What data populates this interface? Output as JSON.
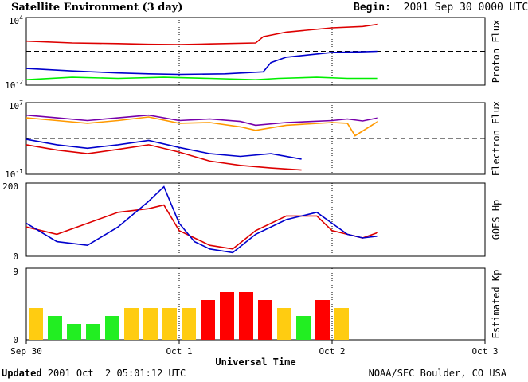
{
  "header": {
    "title": "Satellite Environment (3 day)",
    "begin_label": "Begin:",
    "begin_value": "2001 Sep 30 0000 UTC"
  },
  "footer": {
    "updated_label": "Updated",
    "updated_value": "2001 Oct  2 05:01:12 UTC",
    "agency": "NOAA/SEC Boulder, CO USA"
  },
  "x_axis": {
    "label": "Universal Time",
    "ticks": [
      "Sep 30",
      "Oct 1",
      "Oct 2",
      "Oct 3"
    ],
    "range_days": [
      0,
      3
    ]
  },
  "chart_data": [
    {
      "type": "line",
      "panel": "proton",
      "ylabel": "Proton Flux",
      "yscale": "log",
      "ylim": [
        0.01,
        10000
      ],
      "y_tick_labels": {
        "top": "10^4",
        "bottom": "10^-2",
        "top_base": "10",
        "top_exp": "4",
        "bottom_base": "10",
        "bottom_exp": "-2"
      },
      "threshold": 10,
      "series": [
        {
          "color": "#dd0000",
          "x": [
            0,
            0.3,
            0.6,
            0.8,
            1.0,
            1.2,
            1.5,
            1.55,
            1.7,
            2.0,
            2.2,
            2.3
          ],
          "values": [
            80,
            55,
            48,
            42,
            40,
            45,
            55,
            200,
            500,
            1200,
            1600,
            2500
          ]
        },
        {
          "color": "#0000cc",
          "x": [
            0,
            0.3,
            0.6,
            0.8,
            1.0,
            1.3,
            1.55,
            1.6,
            1.7,
            2.0,
            2.2,
            2.3
          ],
          "values": [
            0.3,
            0.18,
            0.12,
            0.1,
            0.09,
            0.1,
            0.15,
            1.0,
            3,
            8,
            9,
            10
          ]
        },
        {
          "color": "#00ee00",
          "x": [
            0,
            0.3,
            0.6,
            0.9,
            1.2,
            1.5,
            1.65,
            1.9,
            2.1,
            2.3
          ],
          "values": [
            0.03,
            0.05,
            0.04,
            0.05,
            0.04,
            0.03,
            0.04,
            0.05,
            0.04,
            0.04
          ]
        }
      ]
    },
    {
      "type": "line",
      "panel": "electron",
      "ylabel": "Electron Flux",
      "yscale": "log",
      "ylim": [
        0.1,
        10000000
      ],
      "y_tick_labels": {
        "top": "10^7",
        "bottom": "10^-1",
        "top_base": "10",
        "top_exp": "7",
        "bottom_base": "10",
        "bottom_exp": "-1"
      },
      "threshold": 1000,
      "series": [
        {
          "color": "#7700aa",
          "x": [
            0,
            0.2,
            0.4,
            0.6,
            0.8,
            1.0,
            1.2,
            1.4,
            1.5,
            1.7,
            2.0,
            2.1,
            2.2,
            2.3
          ],
          "values": [
            400000,
            200000,
            100000,
            200000,
            400000,
            100000,
            150000,
            80000,
            30000,
            60000,
            100000,
            150000,
            90000,
            200000
          ]
        },
        {
          "color": "#ff9900",
          "x": [
            0,
            0.2,
            0.4,
            0.6,
            0.8,
            1.0,
            1.2,
            1.4,
            1.5,
            1.7,
            2.0,
            2.1,
            2.15,
            2.3
          ],
          "values": [
            200000,
            100000,
            50000,
            100000,
            250000,
            50000,
            60000,
            20000,
            8000,
            30000,
            60000,
            50000,
            2000,
            80000
          ]
        },
        {
          "color": "#0000cc",
          "x": [
            0,
            0.2,
            0.4,
            0.6,
            0.8,
            1.0,
            1.2,
            1.4,
            1.6,
            1.8
          ],
          "values": [
            800,
            200,
            80,
            200,
            600,
            100,
            20,
            10,
            20,
            5
          ]
        },
        {
          "color": "#dd0000",
          "x": [
            0,
            0.2,
            0.4,
            0.6,
            0.8,
            1.0,
            1.2,
            1.4,
            1.6,
            1.8
          ],
          "values": [
            200,
            50,
            20,
            60,
            200,
            30,
            3,
            1,
            0.5,
            0.3
          ]
        }
      ]
    },
    {
      "type": "line",
      "panel": "goes_hp",
      "ylabel": "GOES Hp",
      "yscale": "linear",
      "ylim": [
        0,
        200
      ],
      "y_tick_labels": {
        "top": "200",
        "bottom": "0"
      },
      "series": [
        {
          "color": "#dd0000",
          "x": [
            0,
            0.2,
            0.4,
            0.6,
            0.8,
            0.9,
            1.0,
            1.1,
            1.2,
            1.35,
            1.5,
            1.7,
            1.9,
            2.0,
            2.1,
            2.2,
            2.3
          ],
          "values": [
            80,
            60,
            90,
            120,
            130,
            140,
            70,
            50,
            30,
            20,
            70,
            110,
            110,
            70,
            60,
            50,
            65
          ]
        },
        {
          "color": "#0000cc",
          "x": [
            0,
            0.2,
            0.4,
            0.6,
            0.8,
            0.9,
            1.0,
            1.1,
            1.2,
            1.35,
            1.5,
            1.7,
            1.9,
            2.0,
            2.1,
            2.2,
            2.3
          ],
          "values": [
            90,
            40,
            30,
            80,
            150,
            190,
            90,
            40,
            20,
            10,
            60,
            100,
            120,
            90,
            60,
            50,
            55
          ]
        }
      ]
    },
    {
      "type": "bar",
      "panel": "kp",
      "ylabel": "Estimated Kp",
      "yscale": "linear",
      "ylim": [
        0,
        9
      ],
      "y_tick_labels": {
        "top": "9",
        "bottom": "0"
      },
      "bar_width_days": 0.125,
      "values": [
        4,
        3,
        2,
        2,
        3,
        4,
        4,
        4,
        4,
        5,
        6,
        6,
        5,
        4,
        3,
        5,
        4
      ],
      "colors": [
        "#ffcc11",
        "#22ee22",
        "#22ee22",
        "#22ee22",
        "#22ee22",
        "#ffcc11",
        "#ffcc11",
        "#ffcc11",
        "#ffcc11",
        "#ff0000",
        "#ff0000",
        "#ff0000",
        "#ff0000",
        "#ffcc11",
        "#22ee22",
        "#ff0000",
        "#ffcc11"
      ]
    }
  ]
}
